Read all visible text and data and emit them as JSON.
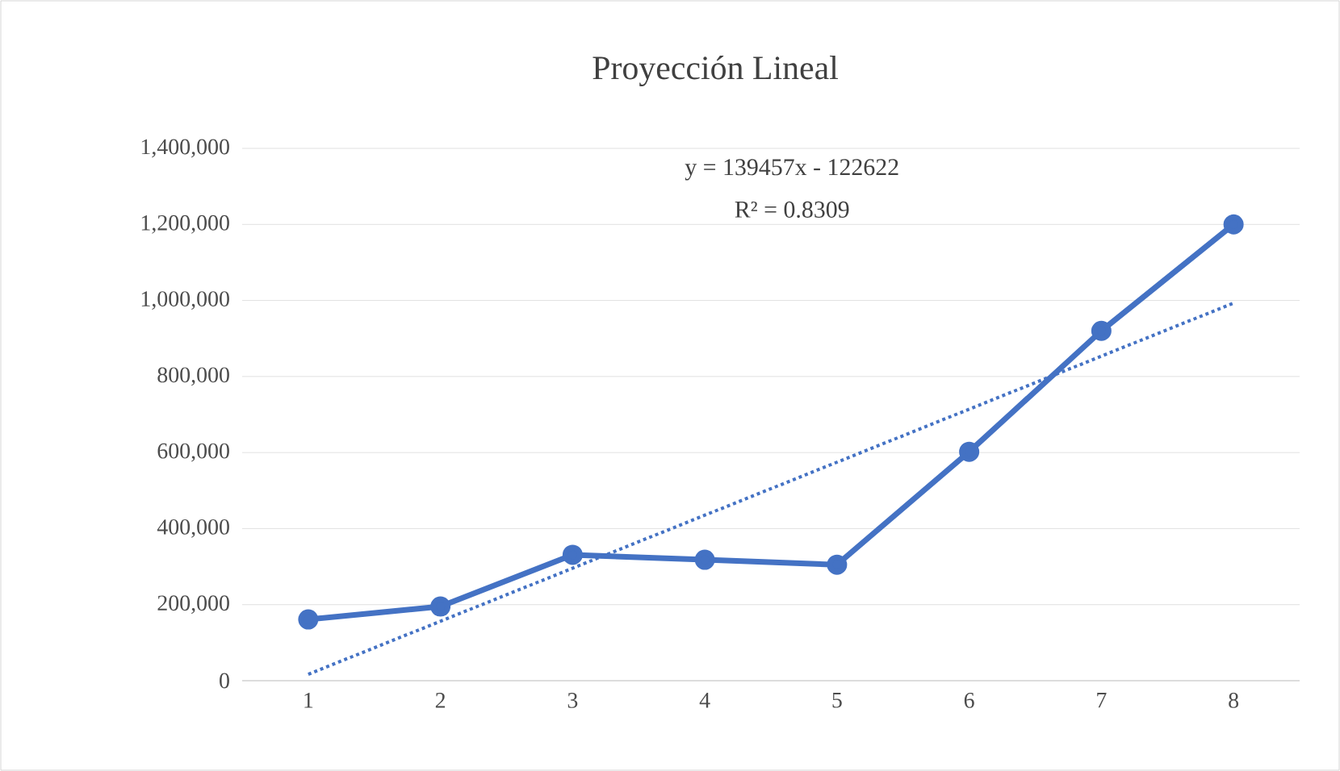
{
  "chart_data": {
    "type": "line",
    "title": "Proyección Lineal",
    "annotations": [
      "y = 139457x - 122622",
      "R² = 0.8309"
    ],
    "x": [
      1,
      2,
      3,
      4,
      5,
      6,
      7,
      8
    ],
    "series": [
      {
        "color": "#4472c4",
        "marker": "circle",
        "line_style": "solid",
        "values": [
          161000,
          195000,
          331000,
          318000,
          305000,
          602000,
          920000,
          1200000
        ]
      },
      {
        "type": "line",
        "color": "#4472c4",
        "marker": "none",
        "line_style": "dotted",
        "x": [
          1,
          8
        ],
        "values": [
          16835,
          993034
        ]
      }
    ],
    "xlim": [
      0.5,
      8.5
    ],
    "xticks": [
      1,
      2,
      3,
      4,
      5,
      6,
      7,
      8
    ],
    "ylim": [
      0,
      1400000
    ],
    "yticks": [
      {
        "value": 0,
        "label": "0"
      },
      {
        "value": 200000,
        "label": "200,000"
      },
      {
        "value": 400000,
        "label": "400,000"
      },
      {
        "value": 600000,
        "label": "600,000"
      },
      {
        "value": 800000,
        "label": "800,000"
      },
      {
        "value": 1000000,
        "label": "1,000,000"
      },
      {
        "value": 1200000,
        "label": "1,200,000"
      },
      {
        "value": 1400000,
        "label": "1,400,000"
      }
    ],
    "grid": "y"
  }
}
